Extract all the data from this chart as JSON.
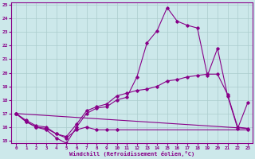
{
  "xlabel": "Windchill (Refroidissement éolien,°C)",
  "bg_color": "#cce8ea",
  "grid_color": "#aacccc",
  "line_color": "#880088",
  "xlim": [
    -0.5,
    23.5
  ],
  "ylim": [
    14.8,
    25.2
  ],
  "yticks": [
    15,
    16,
    17,
    18,
    19,
    20,
    21,
    22,
    23,
    24,
    25
  ],
  "xticks": [
    0,
    1,
    2,
    3,
    4,
    5,
    6,
    7,
    8,
    9,
    10,
    11,
    12,
    13,
    14,
    15,
    16,
    17,
    18,
    19,
    20,
    21,
    22,
    23
  ],
  "line1_x": [
    0,
    1,
    2,
    3,
    4,
    5,
    6,
    7,
    8,
    9,
    10,
    11,
    12,
    13,
    14,
    15,
    16,
    17,
    18,
    19,
    20,
    21,
    22,
    23
  ],
  "line1_y": [
    17.0,
    16.4,
    16.0,
    15.8,
    15.2,
    14.8,
    16.0,
    17.0,
    17.4,
    17.5,
    18.0,
    18.2,
    19.7,
    22.2,
    23.1,
    24.8,
    23.8,
    23.5,
    23.3,
    19.8,
    21.8,
    18.3,
    15.9,
    17.8
  ],
  "line2_x": [
    0,
    1,
    2,
    3,
    4,
    5,
    6,
    7,
    8,
    9,
    10,
    11,
    12,
    13,
    14,
    15,
    16,
    17,
    18,
    19,
    20,
    21,
    22,
    23
  ],
  "line2_y": [
    17.0,
    16.5,
    16.1,
    16.0,
    15.5,
    15.3,
    16.2,
    17.2,
    17.5,
    17.7,
    18.3,
    18.5,
    18.7,
    18.8,
    19.0,
    19.4,
    19.5,
    19.7,
    19.8,
    19.9,
    19.9,
    18.4,
    16.0,
    15.9
  ],
  "line3_x": [
    0,
    23
  ],
  "line3_y": [
    17.0,
    15.9
  ],
  "line4_x": [
    0,
    1,
    2,
    3,
    4,
    5,
    6,
    7,
    8,
    9,
    10,
    23
  ],
  "line4_y": [
    17.0,
    16.4,
    16.0,
    15.9,
    15.5,
    15.2,
    15.8,
    16.0,
    15.8,
    15.8,
    15.8,
    15.8
  ]
}
